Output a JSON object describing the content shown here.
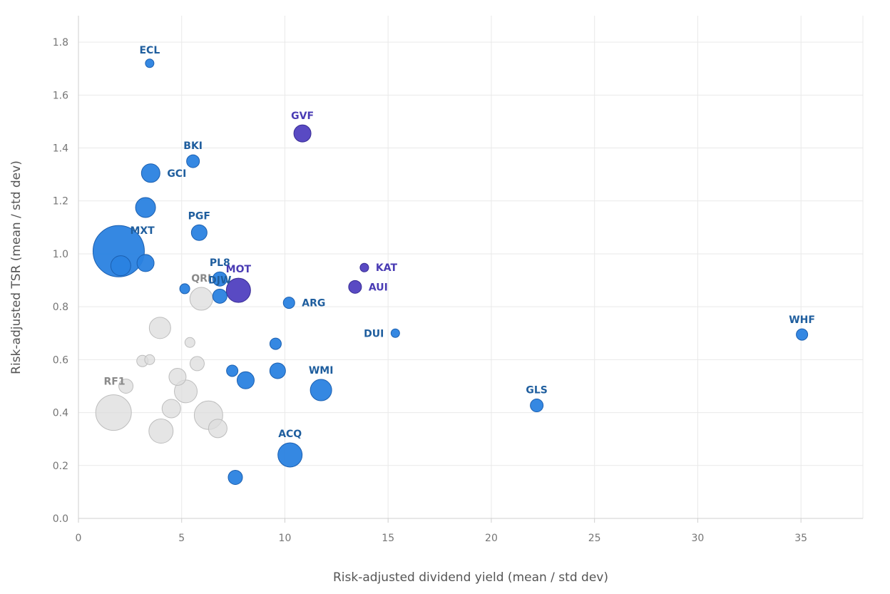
{
  "colors": {
    "blue": "#2a82e0",
    "blue_stroke": "#1b5fb0",
    "blue_label": "#1f5e9e",
    "purple": "#5040c0",
    "purple_stroke": "#382c94",
    "purple_label": "#4a3cb4",
    "grey": "#dcdcdc",
    "grey_stroke": "#bdbdbd",
    "grey_label": "#8a8a8a"
  },
  "chart_data": {
    "type": "scatter",
    "xlabel": "Risk-adjusted dividend yield (mean / std dev)",
    "ylabel": "Risk-adjusted TSR (mean / std dev)",
    "xlim": [
      0,
      38
    ],
    "ylim": [
      0,
      1.9
    ],
    "xticks": [
      0,
      5,
      10,
      15,
      20,
      25,
      30,
      35
    ],
    "yticks": [
      0.0,
      0.2,
      0.4,
      0.6,
      0.8,
      1.0,
      1.2,
      1.4,
      1.6,
      1.8
    ],
    "ytick_labels": [
      "0.0",
      "0.2",
      "0.4",
      "0.6",
      "0.8",
      "1.0",
      "1.2",
      "1.4",
      "1.6",
      "1.8"
    ],
    "grid": true,
    "points": [
      {
        "label": "",
        "x": 1.7,
        "y": 0.4,
        "size": 25,
        "group": "grey"
      },
      {
        "label": "RF1",
        "x": 2.3,
        "y": 0.5,
        "size": 10,
        "group": "grey",
        "label_pos": "above-left"
      },
      {
        "label": "",
        "x": 3.1,
        "y": 0.595,
        "size": 8,
        "group": "grey"
      },
      {
        "label": "",
        "x": 3.45,
        "y": 0.6,
        "size": 7,
        "group": "grey"
      },
      {
        "label": "",
        "x": 4.0,
        "y": 0.33,
        "size": 17,
        "group": "grey"
      },
      {
        "label": "",
        "x": 3.95,
        "y": 0.72,
        "size": 15,
        "group": "grey"
      },
      {
        "label": "",
        "x": 4.5,
        "y": 0.415,
        "size": 13,
        "group": "grey"
      },
      {
        "label": "",
        "x": 4.8,
        "y": 0.535,
        "size": 12,
        "group": "grey"
      },
      {
        "label": "",
        "x": 5.2,
        "y": 0.48,
        "size": 16,
        "group": "grey"
      },
      {
        "label": "",
        "x": 5.4,
        "y": 0.665,
        "size": 7,
        "group": "grey"
      },
      {
        "label": "",
        "x": 5.75,
        "y": 0.585,
        "size": 10,
        "group": "grey"
      },
      {
        "label": "QRI",
        "x": 5.95,
        "y": 0.83,
        "size": 16,
        "group": "grey",
        "label_pos": "above"
      },
      {
        "label": "",
        "x": 6.3,
        "y": 0.39,
        "size": 20,
        "group": "grey"
      },
      {
        "label": "",
        "x": 6.75,
        "y": 0.34,
        "size": 13,
        "group": "grey"
      },
      {
        "label": "ECL",
        "x": 3.45,
        "y": 1.72,
        "size": 6,
        "group": "blue",
        "label_pos": "above"
      },
      {
        "label": "BKI",
        "x": 5.55,
        "y": 1.35,
        "size": 9,
        "group": "blue",
        "label_pos": "above"
      },
      {
        "label": "GCI",
        "x": 3.5,
        "y": 1.305,
        "size": 13,
        "group": "blue",
        "label_pos": "right"
      },
      {
        "label": "",
        "x": 3.25,
        "y": 1.175,
        "size": 14,
        "group": "blue"
      },
      {
        "label": "PGF",
        "x": 5.85,
        "y": 1.08,
        "size": 11,
        "group": "blue",
        "label_pos": "above"
      },
      {
        "label": "MXT",
        "x": 1.95,
        "y": 1.01,
        "size": 36,
        "group": "blue",
        "label_pos": "inside-right"
      },
      {
        "label": "",
        "x": 2.05,
        "y": 0.955,
        "size": 14,
        "group": "blue"
      },
      {
        "label": "",
        "x": 3.25,
        "y": 0.965,
        "size": 12,
        "group": "blue"
      },
      {
        "label": "",
        "x": 5.15,
        "y": 0.868,
        "size": 7,
        "group": "blue"
      },
      {
        "label": "PL8",
        "x": 6.85,
        "y": 0.905,
        "size": 10,
        "group": "blue",
        "label_pos": "above"
      },
      {
        "label": "DJW",
        "x": 6.85,
        "y": 0.84,
        "size": 10,
        "group": "blue",
        "label_pos": "above"
      },
      {
        "label": "ARG",
        "x": 10.2,
        "y": 0.815,
        "size": 8,
        "group": "blue",
        "label_pos": "right"
      },
      {
        "label": "DUI",
        "x": 15.35,
        "y": 0.7,
        "size": 6,
        "group": "blue",
        "label_pos": "left"
      },
      {
        "label": "",
        "x": 9.55,
        "y": 0.66,
        "size": 8,
        "group": "blue"
      },
      {
        "label": "",
        "x": 7.45,
        "y": 0.558,
        "size": 8,
        "group": "blue"
      },
      {
        "label": "",
        "x": 8.1,
        "y": 0.522,
        "size": 12,
        "group": "blue"
      },
      {
        "label": "",
        "x": 9.65,
        "y": 0.558,
        "size": 11,
        "group": "blue"
      },
      {
        "label": "WMI",
        "x": 11.75,
        "y": 0.485,
        "size": 15,
        "group": "blue",
        "label_pos": "above"
      },
      {
        "label": "ACQ",
        "x": 10.25,
        "y": 0.24,
        "size": 17,
        "group": "blue",
        "label_pos": "above"
      },
      {
        "label": "",
        "x": 7.6,
        "y": 0.155,
        "size": 10,
        "group": "blue"
      },
      {
        "label": "GLS",
        "x": 22.2,
        "y": 0.427,
        "size": 9,
        "group": "blue",
        "label_pos": "above"
      },
      {
        "label": "WHF",
        "x": 35.05,
        "y": 0.695,
        "size": 8,
        "group": "blue",
        "label_pos": "above"
      },
      {
        "label": "GVF",
        "x": 10.85,
        "y": 1.455,
        "size": 12,
        "group": "purple",
        "label_pos": "above"
      },
      {
        "label": "MOT",
        "x": 7.75,
        "y": 0.862,
        "size": 17,
        "group": "purple",
        "label_pos": "above"
      },
      {
        "label": "KAT",
        "x": 13.85,
        "y": 0.948,
        "size": 6,
        "group": "purple",
        "label_pos": "right"
      },
      {
        "label": "AUI",
        "x": 13.4,
        "y": 0.875,
        "size": 9,
        "group": "purple",
        "label_pos": "right"
      }
    ]
  }
}
